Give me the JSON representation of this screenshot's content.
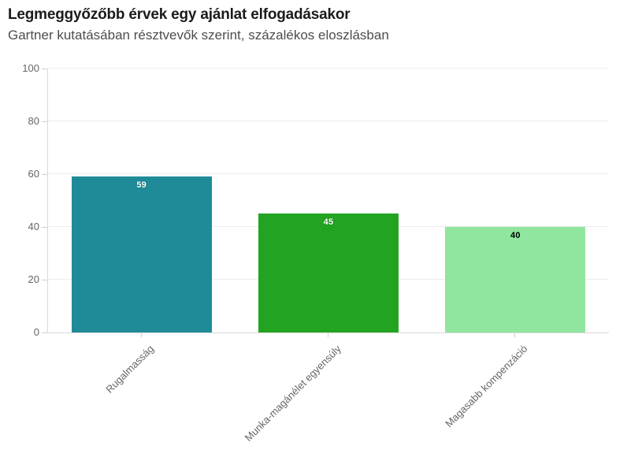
{
  "header": {
    "title": "Legmeggyőzőbb érvek egy ajánlat elfogadásakor",
    "subtitle": "Gartner kutatásában résztvevők szerint, százalékos eloszlásban"
  },
  "chart_data": {
    "type": "bar",
    "title": "Legmeggyőzőbb érvek egy ajánlat elfogadásakor",
    "subtitle": "Gartner kutatásában résztvevők szerint, százalékos eloszlásban",
    "categories": [
      "Rugalmasság",
      "Munka-magánélet egyensúly",
      "Magasabb kompenzáció"
    ],
    "values": [
      59,
      45,
      40
    ],
    "bar_colors": [
      "#1f8b99",
      "#23a322",
      "#90e69e"
    ],
    "value_label_colors": [
      "#ffffff",
      "#ffffff",
      "#000000"
    ],
    "xlabel": "",
    "ylabel": "",
    "ylim": [
      0,
      100
    ],
    "yticks": [
      0,
      20,
      40,
      60,
      80,
      100
    ],
    "grid": true,
    "legend": false,
    "x_labels_rotation_deg": -45,
    "value_labels_shown": true
  },
  "colors": {
    "background": "#ffffff",
    "title_text": "#1b1b1b",
    "subtitle_text": "#4d4d4d",
    "axis_line": "#d8d8d8",
    "gridline": "#ececec",
    "tick": "#d0d0d0",
    "axis_label_text": "#666666"
  }
}
